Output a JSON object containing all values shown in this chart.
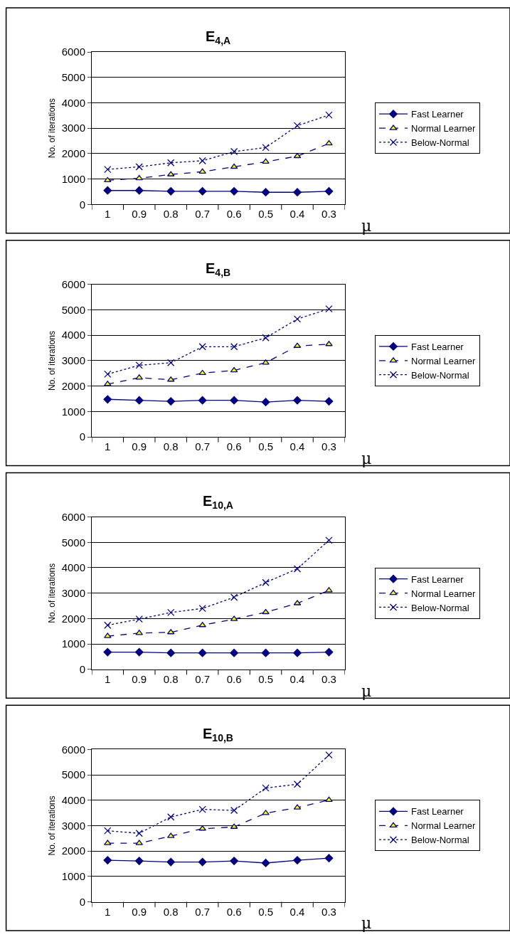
{
  "chart_data": [
    {
      "type": "line",
      "title": "E$_{4,A}$",
      "xlabel": "μ",
      "ylabel": "No. of iterations",
      "categories": [
        "1",
        "0.9",
        "0.8",
        "0.7",
        "0.6",
        "0.5",
        "0.4",
        "0.3"
      ],
      "ylim": [
        0,
        6000
      ],
      "yticks": [
        0,
        1000,
        2000,
        3000,
        4000,
        5000,
        6000
      ],
      "grid": "y",
      "legend": "right",
      "series": [
        {
          "name": "Fast Learner",
          "color": "#000080",
          "marker": "diamond",
          "line_style": "solid",
          "values": [
            550,
            550,
            520,
            520,
            520,
            480,
            480,
            520
          ]
        },
        {
          "name": "Normal Learner",
          "color": "#000080",
          "marker": "triangle",
          "line_style": "dashed",
          "values": [
            950,
            1030,
            1180,
            1290,
            1480,
            1680,
            1900,
            2400
          ]
        },
        {
          "name": "Below-Normal",
          "color": "#000080",
          "marker": "cross",
          "line_style": "dotted",
          "values": [
            1380,
            1480,
            1640,
            1720,
            2080,
            2240,
            3100,
            3520
          ]
        }
      ]
    },
    {
      "type": "line",
      "title": "E$_{4,B}$",
      "xlabel": "μ",
      "ylabel": "No. of iterations",
      "categories": [
        "1",
        "0.9",
        "0.8",
        "0.7",
        "0.6",
        "0.5",
        "0.4",
        "0.3"
      ],
      "ylim": [
        0,
        6000
      ],
      "yticks": [
        0,
        1000,
        2000,
        3000,
        4000,
        5000,
        6000
      ],
      "grid": "y",
      "legend": "right",
      "series": [
        {
          "name": "Fast Learner",
          "color": "#000080",
          "marker": "diamond",
          "line_style": "solid",
          "values": [
            1480,
            1440,
            1400,
            1440,
            1440,
            1370,
            1440,
            1400
          ]
        },
        {
          "name": "Normal Learner",
          "color": "#000080",
          "marker": "triangle",
          "line_style": "dashed",
          "values": [
            2080,
            2330,
            2250,
            2510,
            2620,
            2920,
            3580,
            3650
          ]
        },
        {
          "name": "Below-Normal",
          "color": "#000080",
          "marker": "cross",
          "line_style": "dotted",
          "values": [
            2470,
            2820,
            2920,
            3550,
            3550,
            3900,
            4640,
            5040
          ]
        }
      ]
    },
    {
      "type": "line",
      "title": "E$_{10,A}$",
      "xlabel": "μ",
      "ylabel": "No. of iterations",
      "categories": [
        "1",
        "0.9",
        "0.8",
        "0.7",
        "0.6",
        "0.5",
        "0.4",
        "0.3"
      ],
      "ylim": [
        0,
        6000
      ],
      "yticks": [
        0,
        1000,
        2000,
        3000,
        4000,
        5000,
        6000
      ],
      "grid": "y",
      "legend": "right",
      "series": [
        {
          "name": "Fast Learner",
          "color": "#000080",
          "marker": "diamond",
          "line_style": "solid",
          "values": [
            680,
            680,
            650,
            650,
            650,
            650,
            650,
            680
          ]
        },
        {
          "name": "Normal Learner",
          "color": "#000080",
          "marker": "triangle",
          "line_style": "dashed",
          "values": [
            1310,
            1430,
            1460,
            1740,
            1980,
            2250,
            2600,
            3110
          ]
        },
        {
          "name": "Below-Normal",
          "color": "#000080",
          "marker": "cross",
          "line_style": "dotted",
          "values": [
            1740,
            1980,
            2240,
            2400,
            2840,
            3420,
            3960,
            5080
          ]
        }
      ]
    },
    {
      "type": "line",
      "title": "E$_{10,B}$",
      "xlabel": "μ",
      "ylabel": "No. of iterations",
      "categories": [
        "1",
        "0.9",
        "0.8",
        "0.7",
        "0.6",
        "0.5",
        "0.4",
        "0.3"
      ],
      "ylim": [
        0,
        6000
      ],
      "yticks": [
        0,
        1000,
        2000,
        3000,
        4000,
        5000,
        6000
      ],
      "grid": "y",
      "legend": "right",
      "series": [
        {
          "name": "Fast Learner",
          "color": "#000080",
          "marker": "diamond",
          "line_style": "solid",
          "values": [
            1640,
            1610,
            1570,
            1570,
            1610,
            1530,
            1640,
            1720
          ]
        },
        {
          "name": "Normal Learner",
          "color": "#000080",
          "marker": "triangle",
          "line_style": "dashed",
          "values": [
            2310,
            2310,
            2590,
            2880,
            2950,
            3490,
            3710,
            4010
          ]
        },
        {
          "name": "Below-Normal",
          "color": "#000080",
          "marker": "cross",
          "line_style": "dotted",
          "values": [
            2800,
            2700,
            3340,
            3640,
            3600,
            4480,
            4630,
            5780
          ]
        }
      ]
    }
  ]
}
